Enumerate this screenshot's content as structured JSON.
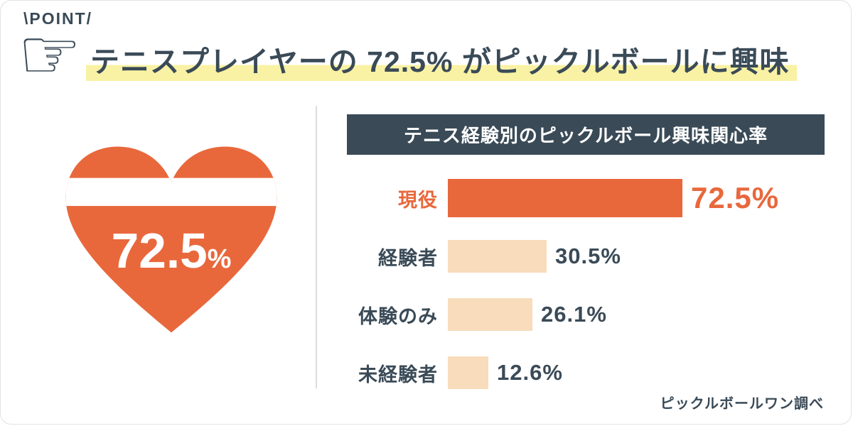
{
  "point_label": "\\POINT/",
  "headline": "テニスプレイヤーの 72.5% がピックルボールに興味",
  "heart": {
    "value": "72.5",
    "percent": "%"
  },
  "source": "ピックルボールワン調べ",
  "colors": {
    "accent_orange": "#E8683C",
    "light_peach": "#F8DCBB",
    "navy": "#3A4A57",
    "highlight_yellow": "#F9F2A4"
  },
  "chart_data": {
    "type": "bar",
    "orientation": "horizontal",
    "title": "テニス経験別のピックルボール興味関心率",
    "categories": [
      "現役",
      "経験者",
      "体験のみ",
      "未経験者"
    ],
    "values": [
      72.5,
      30.5,
      26.1,
      12.6
    ],
    "value_labels": [
      "72.5%",
      "30.5%",
      "26.1%",
      "12.6%"
    ],
    "highlight_index": 0,
    "xlim": [
      0,
      100
    ],
    "bar_colors": [
      "#E8683C",
      "#F8DCBB",
      "#F8DCBB",
      "#F8DCBB"
    ],
    "legend": false,
    "grid": false
  }
}
